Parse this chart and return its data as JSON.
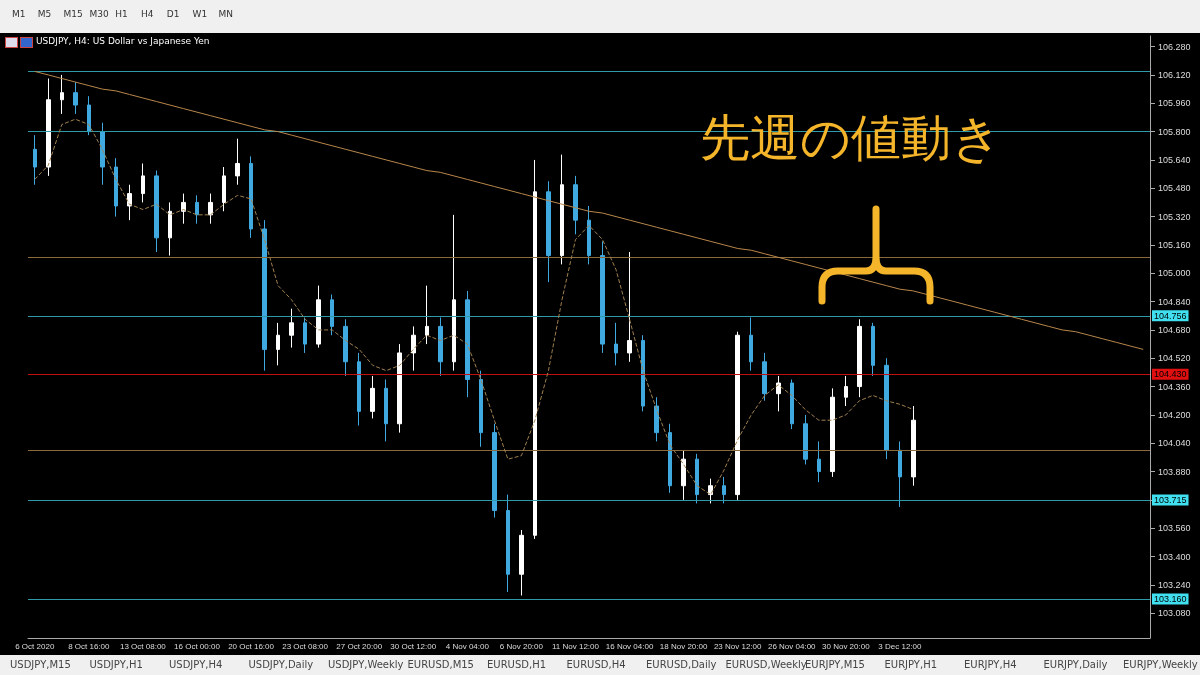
{
  "chart_data": {
    "type": "candlestick",
    "title": "USDJPY, H4:  US Dollar vs Japanese Yen",
    "categories": [
      "6 Oct 2020",
      null,
      null,
      null,
      "8 Oct 16:00",
      null,
      null,
      null,
      "13 Oct 08:00",
      null,
      null,
      null,
      "16 Oct 00:00",
      null,
      null,
      null,
      "20 Oct 16:00",
      null,
      null,
      null,
      "23 Oct 08:00",
      null,
      null,
      null,
      "27 Oct 20:00",
      null,
      null,
      null,
      "30 Oct 12:00",
      null,
      null,
      null,
      "4 Nov 04:00",
      null,
      null,
      null,
      "6 Nov 20:00",
      null,
      null,
      null,
      "11 Nov 12:00",
      null,
      null,
      null,
      "16 Nov 04:00",
      null,
      null,
      null,
      "18 Nov 20:00",
      null,
      null,
      null,
      "23 Nov 12:00",
      null,
      null,
      null,
      "26 Nov 04:00",
      null,
      null,
      null,
      "30 Nov 20:00",
      null,
      null,
      null,
      "3 Dec 12:00",
      null,
      null,
      null,
      null,
      null,
      null,
      null,
      null,
      null,
      null,
      null,
      null,
      null,
      null,
      null,
      null,
      null,
      null
    ],
    "ohlc": [
      [
        105.7,
        105.78,
        105.5,
        105.6
      ],
      [
        105.6,
        106.1,
        105.55,
        105.98
      ],
      [
        105.98,
        106.12,
        105.9,
        106.02
      ],
      [
        106.02,
        106.08,
        105.9,
        105.95
      ],
      [
        105.95,
        106.0,
        105.78,
        105.8
      ],
      [
        105.8,
        105.85,
        105.5,
        105.6
      ],
      [
        105.6,
        105.65,
        105.32,
        105.38
      ],
      [
        105.38,
        105.5,
        105.3,
        105.45
      ],
      [
        105.45,
        105.62,
        105.4,
        105.55
      ],
      [
        105.55,
        105.58,
        105.12,
        105.2
      ],
      [
        105.2,
        105.4,
        105.1,
        105.35
      ],
      [
        105.35,
        105.45,
        105.28,
        105.4
      ],
      [
        105.4,
        105.44,
        105.28,
        105.33
      ],
      [
        105.33,
        105.45,
        105.28,
        105.4
      ],
      [
        105.4,
        105.6,
        105.35,
        105.55
      ],
      [
        105.55,
        105.76,
        105.5,
        105.62
      ],
      [
        105.62,
        105.66,
        105.2,
        105.25
      ],
      [
        105.25,
        105.3,
        104.45,
        104.57
      ],
      [
        104.57,
        104.72,
        104.48,
        104.65
      ],
      [
        104.65,
        104.8,
        104.58,
        104.72
      ],
      [
        104.72,
        104.75,
        104.55,
        104.6
      ],
      [
        104.6,
        104.93,
        104.58,
        104.85
      ],
      [
        104.85,
        104.88,
        104.65,
        104.7
      ],
      [
        104.7,
        104.74,
        104.42,
        104.5
      ],
      [
        104.5,
        104.55,
        104.14,
        104.22
      ],
      [
        104.22,
        104.42,
        104.18,
        104.35
      ],
      [
        104.35,
        104.4,
        104.05,
        104.15
      ],
      [
        104.15,
        104.6,
        104.1,
        104.55
      ],
      [
        104.55,
        104.7,
        104.45,
        104.65
      ],
      [
        104.65,
        104.93,
        104.6,
        104.7
      ],
      [
        104.7,
        104.75,
        104.42,
        104.5
      ],
      [
        104.5,
        105.33,
        104.45,
        104.85
      ],
      [
        104.85,
        104.9,
        104.3,
        104.4
      ],
      [
        104.4,
        104.45,
        104.02,
        104.1
      ],
      [
        104.1,
        104.15,
        103.62,
        103.66
      ],
      [
        103.66,
        103.75,
        103.2,
        103.3
      ],
      [
        103.3,
        103.55,
        103.18,
        103.52
      ],
      [
        103.52,
        105.64,
        103.5,
        105.46
      ],
      [
        105.46,
        105.52,
        104.95,
        105.1
      ],
      [
        105.1,
        105.67,
        105.05,
        105.5
      ],
      [
        105.5,
        105.55,
        105.22,
        105.3
      ],
      [
        105.3,
        105.38,
        105.05,
        105.1
      ],
      [
        105.1,
        105.18,
        104.55,
        104.6
      ],
      [
        104.6,
        104.72,
        104.48,
        104.55
      ],
      [
        104.55,
        105.12,
        104.5,
        104.62
      ],
      [
        104.62,
        104.65,
        104.22,
        104.25
      ],
      [
        104.25,
        104.3,
        104.05,
        104.1
      ],
      [
        104.1,
        104.15,
        103.76,
        103.8
      ],
      [
        103.8,
        104.0,
        103.72,
        103.95
      ],
      [
        103.95,
        103.98,
        103.7,
        103.75
      ],
      [
        103.75,
        103.84,
        103.7,
        103.8
      ],
      [
        103.8,
        103.85,
        103.7,
        103.75
      ],
      [
        103.75,
        104.67,
        103.72,
        104.65
      ],
      [
        104.65,
        104.75,
        104.45,
        104.5
      ],
      [
        104.5,
        104.55,
        104.28,
        104.32
      ],
      [
        104.32,
        104.42,
        104.22,
        104.38
      ],
      [
        104.38,
        104.4,
        104.12,
        104.15
      ],
      [
        104.15,
        104.2,
        103.92,
        103.95
      ],
      [
        103.95,
        104.05,
        103.82,
        103.88
      ],
      [
        103.88,
        104.35,
        103.85,
        104.3
      ],
      [
        104.3,
        104.42,
        104.25,
        104.36
      ],
      [
        104.36,
        104.74,
        104.3,
        104.7
      ],
      [
        104.7,
        104.72,
        104.42,
        104.48
      ],
      [
        104.48,
        104.52,
        103.95,
        104.0
      ],
      [
        104.0,
        104.05,
        103.68,
        103.85
      ],
      [
        103.85,
        104.25,
        103.8,
        104.17
      ],
      null,
      null,
      null,
      null,
      null,
      null,
      null,
      null,
      null,
      null,
      null,
      null,
      null,
      null,
      null,
      null,
      null
    ],
    "colors": [
      "#3fa9e0",
      "#ffffff",
      "#ffffff",
      "#3fa9e0",
      "#3fa9e0",
      "#3fa9e0",
      "#3fa9e0",
      "#ffffff",
      "#ffffff",
      "#3fa9e0",
      "#ffffff",
      "#ffffff",
      "#3fa9e0",
      "#ffffff",
      "#ffffff",
      "#ffffff",
      "#3fa9e0",
      "#3fa9e0",
      "#ffffff",
      "#ffffff",
      "#3fa9e0",
      "#ffffff",
      "#3fa9e0",
      "#3fa9e0",
      "#3fa9e0",
      "#ffffff",
      "#3fa9e0",
      "#ffffff",
      "#ffffff",
      "#ffffff",
      "#3fa9e0",
      "#ffffff",
      "#3fa9e0",
      "#3fa9e0",
      "#3fa9e0",
      "#3fa9e0",
      "#ffffff",
      "#ffffff",
      "#3fa9e0",
      "#ffffff",
      "#3fa9e0",
      "#3fa9e0",
      "#3fa9e0",
      "#3fa9e0",
      "#ffffff",
      "#3fa9e0",
      "#3fa9e0",
      "#3fa9e0",
      "#ffffff",
      "#3fa9e0",
      "#ffffff",
      "#3fa9e0",
      "#ffffff",
      "#3fa9e0",
      "#3fa9e0",
      "#ffffff",
      "#3fa9e0",
      "#3fa9e0",
      "#3fa9e0",
      "#ffffff",
      "#ffffff",
      "#ffffff",
      "#3fa9e0",
      "#3fa9e0",
      "#3fa9e0",
      "#ffffff",
      null,
      null,
      null,
      null,
      null,
      null,
      null,
      null,
      null,
      null,
      null,
      null,
      null,
      null,
      null,
      null,
      null
    ],
    "series": [
      {
        "type": "line",
        "color": "#b8864b",
        "line_style": "solid",
        "values": [
          106.14,
          106.12,
          106.1,
          106.08,
          106.06,
          106.04,
          106.03,
          106.01,
          105.99,
          105.97,
          105.95,
          105.93,
          105.91,
          105.89,
          105.87,
          105.85,
          105.83,
          105.81,
          105.8,
          105.78,
          105.76,
          105.74,
          105.72,
          105.7,
          105.68,
          105.66,
          105.64,
          105.62,
          105.6,
          105.58,
          105.57,
          105.55,
          105.53,
          105.51,
          105.49,
          105.47,
          105.45,
          105.43,
          105.41,
          105.39,
          105.37,
          105.35,
          105.34,
          105.32,
          105.3,
          105.28,
          105.26,
          105.24,
          105.22,
          105.2,
          105.18,
          105.16,
          105.14,
          105.13,
          105.11,
          105.09,
          105.07,
          105.05,
          105.03,
          105.01,
          104.99,
          104.97,
          104.95,
          104.93,
          104.91,
          104.9,
          104.88,
          104.86,
          104.84,
          104.82,
          104.8,
          104.78,
          104.76,
          104.74,
          104.72,
          104.7,
          104.68,
          104.67,
          104.65,
          104.63,
          104.61,
          104.59,
          104.57
        ]
      },
      {
        "type": "line",
        "color": "#a08050",
        "line_style": "dashed",
        "values": [
          105.53,
          105.61,
          105.84,
          105.87,
          105.84,
          105.7,
          105.53,
          105.39,
          105.36,
          105.39,
          105.33,
          105.36,
          105.33,
          105.33,
          105.39,
          105.44,
          105.42,
          105.19,
          104.93,
          104.85,
          104.74,
          104.68,
          104.68,
          104.62,
          104.57,
          104.48,
          104.45,
          104.48,
          104.57,
          104.65,
          104.62,
          104.65,
          104.6,
          104.4,
          104.17,
          103.95,
          103.97,
          104.17,
          104.45,
          104.85,
          105.19,
          105.27,
          105.19,
          105.02,
          104.74,
          104.45,
          104.23,
          104.03,
          103.92,
          103.8,
          103.75,
          103.89,
          104.06,
          104.2,
          104.31,
          104.37,
          104.31,
          104.23,
          104.17,
          104.17,
          104.2,
          104.28,
          104.31,
          104.28,
          104.26,
          104.23,
          null,
          null,
          null,
          null,
          null,
          null,
          null,
          null,
          null,
          null,
          null,
          null,
          null,
          null,
          null,
          null,
          null
        ]
      }
    ],
    "ylim": [
      102.94,
      106.34
    ],
    "yticks": [
      {
        "value": 103.08,
        "label": "103.080"
      },
      {
        "value": 103.24,
        "label": "103.240"
      },
      {
        "value": 103.4,
        "label": "103.400"
      },
      {
        "value": 103.56,
        "label": "103.560"
      },
      {
        "value": 103.72,
        "label": null
      },
      {
        "value": 103.88,
        "label": "103.880"
      },
      {
        "value": 104.04,
        "label": "104.040"
      },
      {
        "value": 104.2,
        "label": "104.200"
      },
      {
        "value": 104.36,
        "label": "104.360"
      },
      {
        "value": 104.52,
        "label": "104.520"
      },
      {
        "value": 104.68,
        "label": "104.680"
      },
      {
        "value": 104.84,
        "label": "104.840"
      },
      {
        "value": 105.0,
        "label": "105.000"
      },
      {
        "value": 105.16,
        "label": "105.160"
      },
      {
        "value": 105.32,
        "label": "105.320"
      },
      {
        "value": 105.48,
        "label": "105.480"
      },
      {
        "value": 105.64,
        "label": "105.640"
      },
      {
        "value": 105.8,
        "label": "105.800"
      },
      {
        "value": 105.96,
        "label": "105.960"
      },
      {
        "value": 106.12,
        "label": "106.120"
      },
      {
        "value": 106.28,
        "label": "106.280"
      }
    ],
    "ref_lines": [
      {
        "axis": "y",
        "value": 106.14,
        "label": null,
        "color": "#2f9aa8"
      },
      {
        "axis": "y",
        "value": 105.8,
        "label": null,
        "color": "#2f9aa8"
      },
      {
        "axis": "y",
        "value": 105.09,
        "label": null,
        "color": "#8a6a3a"
      },
      {
        "axis": "y",
        "value": 104.756,
        "label": "104.756",
        "color": "#2f9aa8"
      },
      {
        "axis": "y",
        "value": 104.43,
        "label": "104.430",
        "color": "#c01010"
      },
      {
        "axis": "y",
        "value": 104.0,
        "label": null,
        "color": "#8a6a3a"
      },
      {
        "axis": "y",
        "value": 103.715,
        "label": "103.715",
        "color": "#2f9aa8"
      },
      {
        "axis": "y",
        "value": 103.16,
        "label": "103.160",
        "color": "#2f9aa8"
      }
    ],
    "annotations": [
      "先週の値動き",
      "M1",
      "M5",
      "M15",
      "M30",
      "H1",
      "H4",
      "D1",
      "W1",
      "MN",
      "USDJPY,M15",
      "USDJPY,H1",
      "USDJPY,H4",
      "USDJPY,Daily",
      "USDJPY,Weekly",
      "EURUSD,M15",
      "EURUSD,H1",
      "EURUSD,H4",
      "EURUSD,Daily",
      "EURUSD,Weekly",
      "EURJPY,M15",
      "EURJPY,H1",
      "EURJPY,H4",
      "EURJPY,Daily",
      "EURJPY,Weekly"
    ],
    "grid": false
  }
}
